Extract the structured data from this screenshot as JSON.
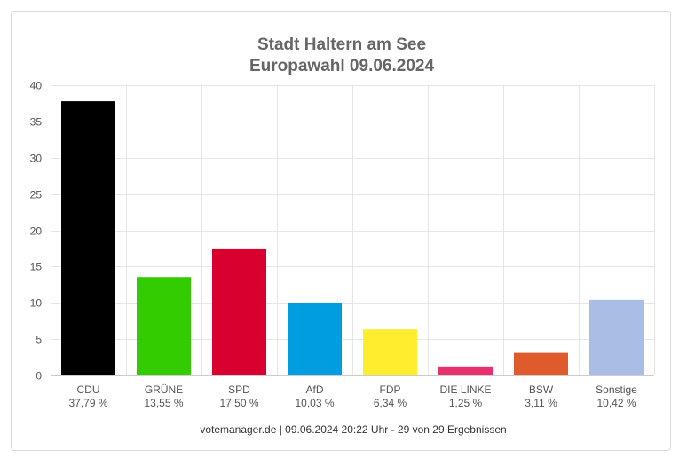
{
  "chart_data": {
    "type": "bar",
    "title": "Stadt Haltern am See",
    "subtitle": "Europawahl 09.06.2024",
    "categories": [
      "CDU",
      "GRÜNE",
      "SPD",
      "AfD",
      "FDP",
      "DIE LINKE",
      "BSW",
      "Sonstige"
    ],
    "values": [
      37.79,
      13.55,
      17.5,
      10.03,
      6.34,
      1.25,
      3.11,
      10.42
    ],
    "value_labels": [
      "37,79 %",
      "13,55 %",
      "17,50 %",
      "10,03 %",
      "6,34 %",
      "1,25 %",
      "3,11 %",
      "10,42 %"
    ],
    "colors": [
      "#000000",
      "#33cc00",
      "#d7002e",
      "#009ee0",
      "#ffed2e",
      "#e6316e",
      "#e05b2b",
      "#aabde4"
    ],
    "ylim": [
      0,
      40
    ],
    "yticks": [
      0,
      5,
      10,
      15,
      20,
      25,
      30,
      35,
      40
    ],
    "grid": true,
    "footer": "votemanager.de | 09.06.2024 20:22 Uhr - 29 von 29 Ergebnissen"
  }
}
